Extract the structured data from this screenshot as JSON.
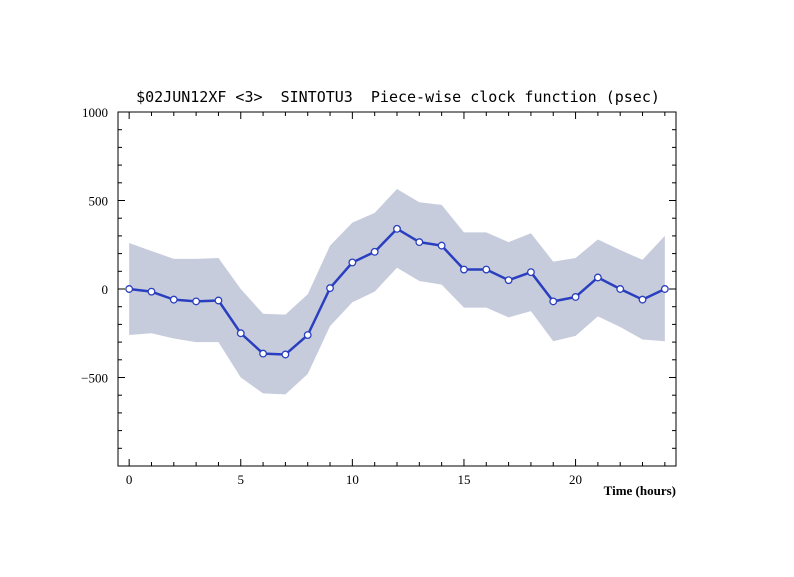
{
  "chart_data": {
    "type": "line",
    "title": "$02JUN12XF <3>  SINTOTU3  Piece-wise clock function (psec)",
    "xlabel": "Time (hours)",
    "ylabel": "",
    "xlim": [
      -0.5,
      24.5
    ],
    "ylim": [
      -1000,
      1000
    ],
    "x_ticks": [
      0,
      5,
      10,
      15,
      20
    ],
    "y_ticks": [
      -500,
      0,
      500,
      1000
    ],
    "grid": false,
    "colors": {
      "line": "#2a3fbf",
      "marker_fill": "#ffffff",
      "marker_edge": "#2a3fbf",
      "band": "#c7ccdd",
      "axis": "#000000"
    },
    "x": [
      0,
      1,
      2,
      3,
      4,
      5,
      6,
      7,
      8,
      9,
      10,
      11,
      12,
      13,
      14,
      15,
      16,
      17,
      18,
      19,
      20,
      21,
      22,
      23,
      24
    ],
    "series": [
      {
        "values": [
          0,
          -15,
          -60,
          -70,
          -65,
          -250,
          -365,
          -370,
          -260,
          5,
          150,
          210,
          340,
          265,
          245,
          110,
          110,
          50,
          95,
          -70,
          -45,
          65,
          0,
          -60,
          0
        ]
      }
    ],
    "band": {
      "upper": [
        260,
        215,
        170,
        170,
        175,
        0,
        -140,
        -145,
        -30,
        245,
        375,
        430,
        565,
        490,
        475,
        320,
        320,
        265,
        315,
        155,
        175,
        280,
        220,
        165,
        300
      ],
      "lower": [
        -260,
        -250,
        -280,
        -300,
        -300,
        -500,
        -590,
        -595,
        -480,
        -210,
        -75,
        -15,
        120,
        45,
        25,
        -105,
        -105,
        -160,
        -125,
        -295,
        -265,
        -155,
        -215,
        -285,
        -295
      ]
    }
  }
}
